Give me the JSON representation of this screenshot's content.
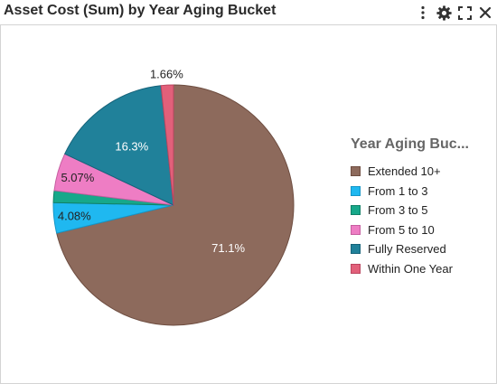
{
  "widget": {
    "title": "Asset Cost (Sum) by Year Aging Bucket"
  },
  "toolbar": {
    "icons": [
      "more-vertical-icon",
      "gear-icon",
      "fullscreen-icon",
      "close-icon"
    ]
  },
  "legend": {
    "title": "Year Aging Buc..."
  },
  "chart_data": {
    "type": "pie",
    "title": "Asset Cost (Sum) by Year Aging Bucket",
    "legend_title": "Year Aging Buc...",
    "legend_position": "right",
    "start_angle_deg": 0,
    "direction": "clockwise",
    "slices": [
      {
        "name": "Extended 10+",
        "value": 71.1,
        "label": "71.1%",
        "color": "#8d6a5c",
        "stroke": "#6e4d40",
        "label_color": "#ffffff"
      },
      {
        "name": "From 1 to 3",
        "value": 4.08,
        "label": "4.08%",
        "color": "#1fb8f0",
        "stroke": "#1596c7",
        "label_color": "#222222"
      },
      {
        "name": "From 3 to 5",
        "value": 1.6,
        "label": "",
        "color": "#17a88a",
        "stroke": "#108066",
        "label_color": "#222222"
      },
      {
        "name": "From 5 to 10",
        "value": 5.07,
        "label": "5.07%",
        "color": "#ee7dc4",
        "stroke": "#c65ea0",
        "label_color": "#222222"
      },
      {
        "name": "Fully Reserved",
        "value": 16.3,
        "label": "16.3%",
        "color": "#20819a",
        "stroke": "#16637a",
        "label_color": "#ffffff"
      },
      {
        "name": "Within One Year",
        "value": 1.66,
        "label": "1.66%",
        "color": "#e2607a",
        "stroke": "#bb4660",
        "label_color": "#222222"
      }
    ]
  }
}
